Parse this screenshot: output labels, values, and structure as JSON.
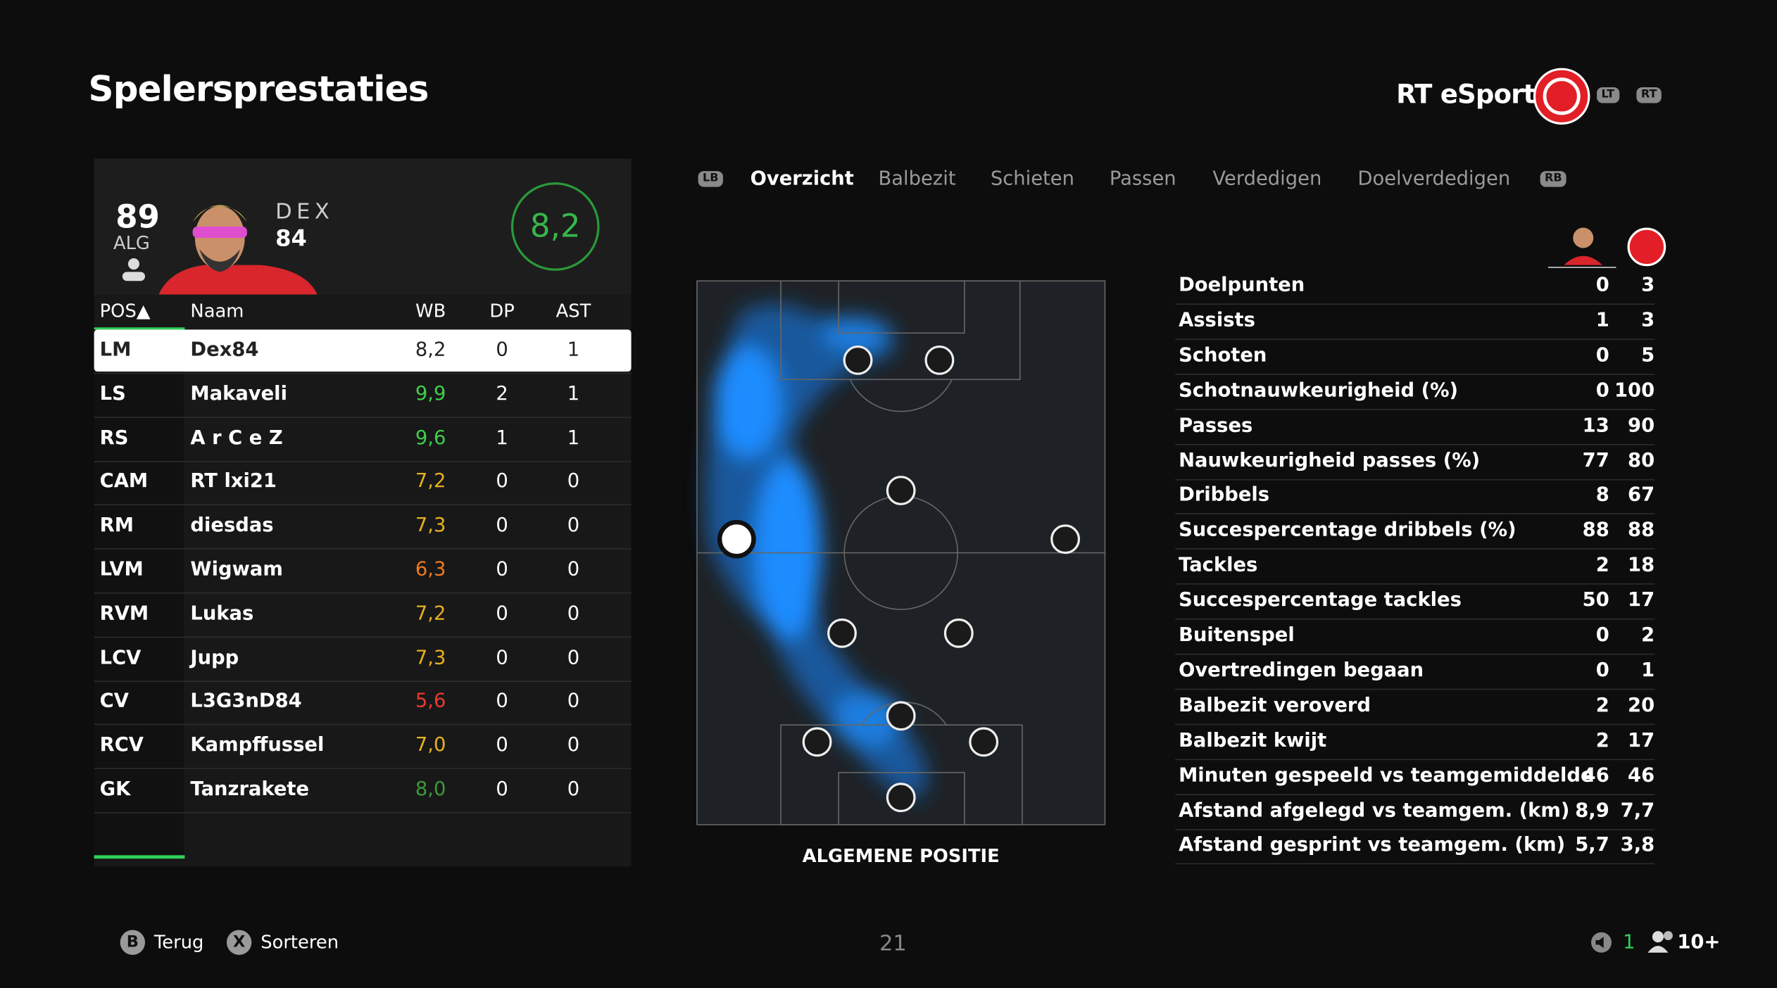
{
  "header": {
    "title": "Spelersprestaties",
    "team": "RT eSport",
    "lt": "LT",
    "rt": "RT"
  },
  "player_card": {
    "overall": "89",
    "overall_label": "ALG",
    "name": "DEX",
    "rating": "84",
    "match_rating": "8,2"
  },
  "table": {
    "columns": [
      "POS▲",
      "Naam",
      "WB",
      "DP",
      "AST"
    ],
    "rows": [
      [
        "LM",
        "Dex84",
        "8,2",
        "0",
        "1"
      ],
      [
        "LS",
        "Makaveli",
        "9,9",
        "2",
        "1"
      ],
      [
        "RS",
        "A r C e Z",
        "9,6",
        "1",
        "1"
      ],
      [
        "CAM",
        "RT lxi21",
        "7,2",
        "0",
        "0"
      ],
      [
        "RM",
        "diesdas",
        "7,3",
        "0",
        "0"
      ],
      [
        "LVM",
        "Wigwam",
        "6,3",
        "0",
        "0"
      ],
      [
        "RVM",
        "Lukas",
        "7,2",
        "0",
        "0"
      ],
      [
        "LCV",
        "Jupp",
        "7,3",
        "0",
        "0"
      ],
      [
        "CV",
        "L3G3nD84",
        "5,6",
        "0",
        "0"
      ],
      [
        "RCV",
        "Kampffussel",
        "7,0",
        "0",
        "0"
      ],
      [
        "GK",
        "Tanzrakete",
        "8,0",
        "0",
        "0"
      ]
    ],
    "rating_colors": [
      "#222222",
      "#3ecf4a",
      "#3ecf4a",
      "#e8b11c",
      "#e8b11c",
      "#f07a1e",
      "#e8b11c",
      "#e8b11c",
      "#e83b2e",
      "#e8b11c",
      "#3a9a3a"
    ]
  },
  "tabs": {
    "lb": "LB",
    "items": [
      "Overzicht",
      "Balbezit",
      "Schieten",
      "Passen",
      "Verdedigen",
      "Doelverdedigen"
    ],
    "rb": "RB"
  },
  "pitch": {
    "caption": "ALGEMENE POSITIE"
  },
  "stats": {
    "rows": [
      [
        "Doelpunten",
        "0",
        "3"
      ],
      [
        "Assists",
        "1",
        "3"
      ],
      [
        "Schoten",
        "0",
        "5"
      ],
      [
        "Schotnauwkeurigheid (%)",
        "0",
        "100"
      ],
      [
        "Passes",
        "13",
        "90"
      ],
      [
        "Nauwkeurigheid passes (%)",
        "77",
        "80"
      ],
      [
        "Dribbels",
        "8",
        "67"
      ],
      [
        "Succespercentage dribbels (%)",
        "88",
        "88"
      ],
      [
        "Tackles",
        "2",
        "18"
      ],
      [
        "Succespercentage tackles",
        "50",
        "17"
      ],
      [
        "Buitenspel",
        "0",
        "2"
      ],
      [
        "Overtredingen begaan",
        "0",
        "1"
      ],
      [
        "Balbezit veroverd",
        "2",
        "20"
      ],
      [
        "Balbezit kwijt",
        "2",
        "17"
      ],
      [
        "Minuten gespeeld vs teamgemiddelde",
        "46",
        "46"
      ],
      [
        "Afstand afgelegd vs teamgem. (km)",
        "8,9",
        "7,7"
      ],
      [
        "Afstand gesprint vs teamgem. (km)",
        "5,7",
        "3,8"
      ]
    ]
  },
  "footer": {
    "back_key": "B",
    "back": "Terug",
    "sort_key": "X",
    "sort": "Sorteren",
    "page": "21",
    "notifications": "1",
    "players": "10+"
  }
}
